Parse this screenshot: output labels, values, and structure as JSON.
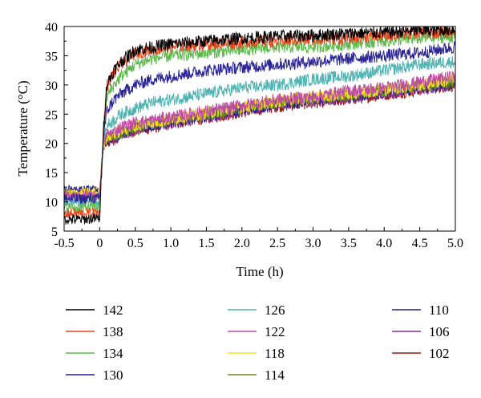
{
  "chart_data": {
    "type": "line",
    "title": "",
    "xlabel": "Time (h)",
    "ylabel": "Temperature (°C)",
    "xlim": [
      -0.5,
      5.0
    ],
    "ylim": [
      5,
      40
    ],
    "x_ticks": [
      -0.5,
      0,
      0.5,
      1.0,
      1.5,
      2.0,
      2.5,
      3.0,
      3.5,
      4.0,
      4.5,
      5.0
    ],
    "x_tick_labels": [
      "-0.5",
      "0",
      "0.5",
      "1.0",
      "1.5",
      "2.0",
      "2.5",
      "3.0",
      "3.5",
      "4.0",
      "4.5",
      "5.0"
    ],
    "y_ticks": [
      5,
      10,
      15,
      20,
      25,
      30,
      35,
      40
    ],
    "y_tick_labels": [
      "5",
      "10",
      "15",
      "20",
      "25",
      "30",
      "35",
      "40"
    ],
    "grid": false,
    "legend_placement": "below",
    "x": [
      -0.5,
      -0.25,
      0,
      0.05,
      0.1,
      0.2,
      0.3,
      0.5,
      0.75,
      1.0,
      1.5,
      2.0,
      2.5,
      3.0,
      3.5,
      4.0,
      4.5,
      5.0
    ],
    "series": [
      {
        "name": "142",
        "color": "#000000",
        "values": [
          7.0,
          7.0,
          7.2,
          22.0,
          30.0,
          32.5,
          34.0,
          36.0,
          36.5,
          37.0,
          37.5,
          38.0,
          38.3,
          38.5,
          38.8,
          39.0,
          39.3,
          39.5
        ]
      },
      {
        "name": "138",
        "color": "#e8471c",
        "values": [
          8.0,
          8.0,
          8.2,
          22.0,
          30.0,
          32.0,
          33.5,
          35.5,
          36.0,
          36.5,
          37.0,
          37.3,
          37.5,
          37.8,
          38.0,
          38.5,
          39.0,
          39.0
        ]
      },
      {
        "name": "134",
        "color": "#5bb84a",
        "values": [
          9.0,
          9.0,
          9.2,
          21.5,
          28.0,
          30.0,
          31.5,
          33.5,
          34.5,
          35.0,
          35.5,
          36.0,
          36.5,
          36.5,
          37.0,
          37.5,
          38.0,
          38.3
        ]
      },
      {
        "name": "130",
        "color": "#2b2495",
        "values": [
          10.5,
          10.5,
          10.6,
          21.0,
          25.5,
          27.5,
          28.5,
          30.0,
          31.0,
          31.5,
          32.5,
          33.0,
          33.5,
          34.0,
          34.5,
          35.0,
          35.5,
          36.5
        ]
      },
      {
        "name": "126",
        "color": "#4fb3b3",
        "values": [
          10.0,
          10.0,
          10.1,
          20.5,
          23.0,
          24.0,
          25.0,
          26.0,
          27.0,
          27.5,
          28.5,
          29.5,
          30.0,
          31.0,
          31.5,
          32.5,
          33.5,
          34.0
        ]
      },
      {
        "name": "122",
        "color": "#c04aa6",
        "values": [
          11.0,
          11.0,
          11.1,
          20.0,
          21.5,
          22.0,
          22.8,
          23.5,
          24.0,
          24.5,
          25.5,
          26.5,
          27.5,
          28.0,
          29.0,
          29.5,
          30.5,
          31.5
        ]
      },
      {
        "name": "118",
        "color": "#f2e21f",
        "values": [
          11.5,
          11.5,
          11.6,
          20.0,
          21.0,
          21.5,
          22.2,
          23.0,
          23.5,
          24.2,
          25.2,
          26.2,
          27.2,
          28.0,
          28.5,
          29.2,
          30.0,
          31.0
        ]
      },
      {
        "name": "114",
        "color": "#6a8f1e",
        "values": [
          11.0,
          11.0,
          11.1,
          19.8,
          20.8,
          21.2,
          22.0,
          22.8,
          23.3,
          24.0,
          25.0,
          26.0,
          27.0,
          27.6,
          28.2,
          29.0,
          29.8,
          30.5
        ]
      },
      {
        "name": "110",
        "color": "#1f1f8a",
        "values": [
          12.0,
          12.0,
          12.0,
          19.8,
          20.6,
          21.0,
          21.8,
          22.6,
          23.1,
          23.8,
          24.8,
          25.8,
          26.8,
          27.4,
          28.0,
          28.8,
          29.6,
          30.3
        ]
      },
      {
        "name": "106",
        "color": "#8b2a9e",
        "values": [
          11.5,
          11.5,
          11.5,
          19.6,
          20.4,
          20.8,
          21.6,
          22.4,
          22.9,
          23.6,
          24.6,
          25.6,
          26.6,
          27.2,
          27.8,
          28.6,
          29.4,
          30.1
        ]
      },
      {
        "name": "102",
        "color": "#9b1a14",
        "values": [
          11.0,
          11.0,
          11.0,
          19.5,
          20.3,
          20.7,
          21.5,
          22.2,
          22.7,
          23.4,
          24.4,
          25.4,
          26.4,
          27.0,
          27.6,
          28.4,
          29.2,
          30.0
        ]
      }
    ]
  }
}
